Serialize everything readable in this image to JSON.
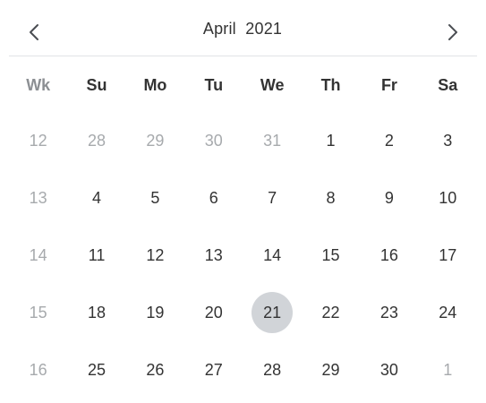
{
  "header": {
    "title": "April  2021",
    "prev_icon": "chevron-left-icon",
    "next_icon": "chevron-right-icon"
  },
  "colors": {
    "text": "#333333",
    "muted": "#a7aaad",
    "selected_bg": "#d1d4d8",
    "divider": "#e1e3e6"
  },
  "weekdays": [
    "Wk",
    "Su",
    "Mo",
    "Tu",
    "We",
    "Th",
    "Fr",
    "Sa"
  ],
  "weeks": [
    {
      "wk": "12",
      "days": [
        {
          "label": "28",
          "muted": true
        },
        {
          "label": "29",
          "muted": true
        },
        {
          "label": "30",
          "muted": true
        },
        {
          "label": "31",
          "muted": true
        },
        {
          "label": "1"
        },
        {
          "label": "2"
        },
        {
          "label": "3"
        }
      ]
    },
    {
      "wk": "13",
      "days": [
        {
          "label": "4"
        },
        {
          "label": "5"
        },
        {
          "label": "6"
        },
        {
          "label": "7"
        },
        {
          "label": "8"
        },
        {
          "label": "9"
        },
        {
          "label": "10"
        }
      ]
    },
    {
      "wk": "14",
      "days": [
        {
          "label": "11"
        },
        {
          "label": "12"
        },
        {
          "label": "13"
        },
        {
          "label": "14"
        },
        {
          "label": "15"
        },
        {
          "label": "16"
        },
        {
          "label": "17"
        }
      ]
    },
    {
      "wk": "15",
      "days": [
        {
          "label": "18"
        },
        {
          "label": "19"
        },
        {
          "label": "20"
        },
        {
          "label": "21",
          "selected": true
        },
        {
          "label": "22"
        },
        {
          "label": "23"
        },
        {
          "label": "24"
        }
      ]
    },
    {
      "wk": "16",
      "days": [
        {
          "label": "25"
        },
        {
          "label": "26"
        },
        {
          "label": "27"
        },
        {
          "label": "28"
        },
        {
          "label": "29"
        },
        {
          "label": "30"
        },
        {
          "label": "1",
          "muted": true
        }
      ]
    }
  ]
}
